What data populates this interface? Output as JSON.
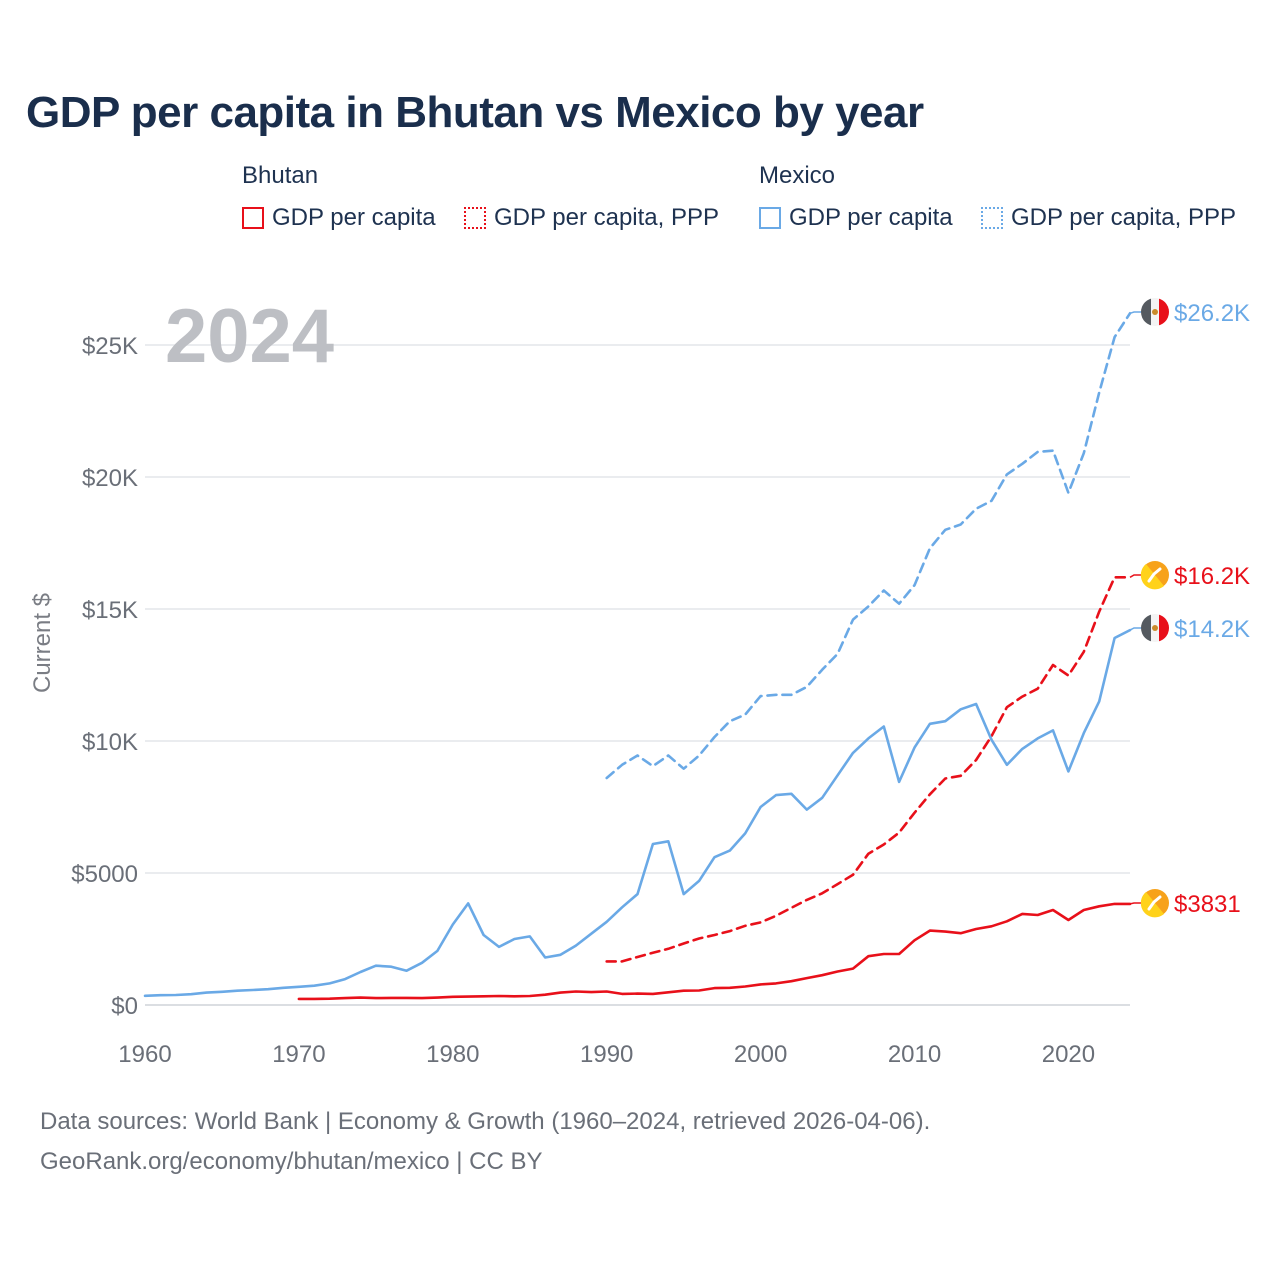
{
  "title": "GDP per capita in Bhutan vs Mexico by year",
  "legend": {
    "groups": [
      {
        "name": "Bhutan",
        "items": [
          {
            "label": "GDP per capita",
            "style": "solid",
            "color": "#e8101a"
          },
          {
            "label": "GDP per capita, PPP",
            "style": "dotted",
            "color": "#e8101a"
          }
        ]
      },
      {
        "name": "Mexico",
        "items": [
          {
            "label": "GDP per capita",
            "style": "solid",
            "color": "#6aa9e6"
          },
          {
            "label": "GDP per capita, PPP",
            "style": "dotted",
            "color": "#6aa9e6"
          }
        ]
      }
    ]
  },
  "year_watermark": "2024",
  "footer": {
    "line1": "Data sources: World Bank | Economy & Growth (1960–2024, retrieved 2026-04-06).",
    "line2": "GeoRank.org/economy/bhutan/mexico | CC BY"
  },
  "chart_data": {
    "type": "line",
    "title": "GDP per capita in Bhutan vs Mexico by year",
    "ylabel": "Current $",
    "xlabel": "",
    "xlim": [
      1960,
      2024
    ],
    "ylim": [
      0,
      27000
    ],
    "x_ticks": [
      1960,
      1970,
      1980,
      1990,
      2000,
      2010,
      2020
    ],
    "x_tick_labels": [
      "1960",
      "1970",
      "1980",
      "1990",
      "2000",
      "2010",
      "2020"
    ],
    "y_ticks": [
      0,
      5000,
      10000,
      15000,
      20000,
      25000
    ],
    "y_tick_labels": [
      "$0",
      "$5000",
      "$10K",
      "$15K",
      "$20K",
      "$25K"
    ],
    "grid": "horizontal",
    "series": [
      {
        "name": "Mexico GDP per capita, PPP",
        "country": "Mexico",
        "color": "#6aa9e6",
        "dash": "dashed",
        "end_label": "$26.2K",
        "points": [
          [
            1990,
            8600
          ],
          [
            1991,
            9100
          ],
          [
            1992,
            9450
          ],
          [
            1993,
            9050
          ],
          [
            1994,
            9450
          ],
          [
            1995,
            8950
          ],
          [
            1996,
            9450
          ],
          [
            1997,
            10150
          ],
          [
            1998,
            10750
          ],
          [
            1999,
            11000
          ],
          [
            2000,
            11700
          ],
          [
            2001,
            11750
          ],
          [
            2002,
            11750
          ],
          [
            2003,
            12050
          ],
          [
            2004,
            12700
          ],
          [
            2005,
            13300
          ],
          [
            2006,
            14600
          ],
          [
            2007,
            15100
          ],
          [
            2008,
            15700
          ],
          [
            2009,
            15200
          ],
          [
            2010,
            15900
          ],
          [
            2011,
            17300
          ],
          [
            2012,
            18000
          ],
          [
            2013,
            18200
          ],
          [
            2014,
            18800
          ],
          [
            2015,
            19100
          ],
          [
            2016,
            20100
          ],
          [
            2017,
            20500
          ],
          [
            2018,
            20950
          ],
          [
            2019,
            21000
          ],
          [
            2020,
            19400
          ],
          [
            2021,
            20900
          ],
          [
            2022,
            23200
          ],
          [
            2023,
            25300
          ],
          [
            2024,
            26200
          ]
        ]
      },
      {
        "name": "Bhutan GDP per capita, PPP",
        "country": "Bhutan",
        "color": "#e8101a",
        "dash": "dashed",
        "end_label": "$16.2K",
        "points": [
          [
            1990,
            1650
          ],
          [
            1991,
            1650
          ],
          [
            1992,
            1820
          ],
          [
            1993,
            1980
          ],
          [
            1994,
            2130
          ],
          [
            1995,
            2330
          ],
          [
            1996,
            2520
          ],
          [
            1997,
            2650
          ],
          [
            1998,
            2800
          ],
          [
            1999,
            3000
          ],
          [
            2000,
            3130
          ],
          [
            2001,
            3380
          ],
          [
            2002,
            3680
          ],
          [
            2003,
            3980
          ],
          [
            2004,
            4230
          ],
          [
            2005,
            4580
          ],
          [
            2006,
            4930
          ],
          [
            2007,
            5730
          ],
          [
            2008,
            6080
          ],
          [
            2009,
            6530
          ],
          [
            2010,
            7280
          ],
          [
            2011,
            7980
          ],
          [
            2012,
            8580
          ],
          [
            2013,
            8680
          ],
          [
            2014,
            9280
          ],
          [
            2015,
            10180
          ],
          [
            2016,
            11280
          ],
          [
            2017,
            11680
          ],
          [
            2018,
            11980
          ],
          [
            2019,
            12880
          ],
          [
            2020,
            12480
          ],
          [
            2021,
            13380
          ],
          [
            2022,
            14900
          ],
          [
            2023,
            16200
          ],
          [
            2024,
            16200
          ]
        ]
      },
      {
        "name": "Mexico GDP per capita",
        "country": "Mexico",
        "color": "#6aa9e6",
        "dash": "solid",
        "end_label": "$14.2K",
        "points": [
          [
            1960,
            350
          ],
          [
            1961,
            370
          ],
          [
            1962,
            380
          ],
          [
            1963,
            410
          ],
          [
            1964,
            470
          ],
          [
            1965,
            500
          ],
          [
            1966,
            540
          ],
          [
            1967,
            570
          ],
          [
            1968,
            600
          ],
          [
            1969,
            650
          ],
          [
            1970,
            690
          ],
          [
            1971,
            730
          ],
          [
            1972,
            820
          ],
          [
            1973,
            980
          ],
          [
            1974,
            1250
          ],
          [
            1975,
            1490
          ],
          [
            1976,
            1450
          ],
          [
            1977,
            1300
          ],
          [
            1978,
            1600
          ],
          [
            1979,
            2050
          ],
          [
            1980,
            3050
          ],
          [
            1981,
            3850
          ],
          [
            1982,
            2650
          ],
          [
            1983,
            2200
          ],
          [
            1984,
            2500
          ],
          [
            1985,
            2600
          ],
          [
            1986,
            1800
          ],
          [
            1987,
            1900
          ],
          [
            1988,
            2250
          ],
          [
            1989,
            2700
          ],
          [
            1990,
            3150
          ],
          [
            1991,
            3700
          ],
          [
            1992,
            4200
          ],
          [
            1993,
            6100
          ],
          [
            1994,
            6200
          ],
          [
            1995,
            4200
          ],
          [
            1996,
            4700
          ],
          [
            1997,
            5600
          ],
          [
            1998,
            5850
          ],
          [
            1999,
            6500
          ],
          [
            2000,
            7500
          ],
          [
            2001,
            7950
          ],
          [
            2002,
            8000
          ],
          [
            2003,
            7400
          ],
          [
            2004,
            7850
          ],
          [
            2005,
            8700
          ],
          [
            2006,
            9550
          ],
          [
            2007,
            10100
          ],
          [
            2008,
            10550
          ],
          [
            2009,
            8450
          ],
          [
            2010,
            9750
          ],
          [
            2011,
            10650
          ],
          [
            2012,
            10750
          ],
          [
            2013,
            11200
          ],
          [
            2014,
            11400
          ],
          [
            2015,
            10050
          ],
          [
            2016,
            9100
          ],
          [
            2017,
            9700
          ],
          [
            2018,
            10100
          ],
          [
            2019,
            10400
          ],
          [
            2020,
            8850
          ],
          [
            2021,
            10300
          ],
          [
            2022,
            11500
          ],
          [
            2023,
            13900
          ],
          [
            2024,
            14200
          ]
        ]
      },
      {
        "name": "Bhutan GDP per capita",
        "country": "Bhutan",
        "color": "#e8101a",
        "dash": "solid",
        "end_label": "$3831",
        "points": [
          [
            1970,
            230
          ],
          [
            1971,
            230
          ],
          [
            1972,
            240
          ],
          [
            1973,
            260
          ],
          [
            1974,
            280
          ],
          [
            1975,
            260
          ],
          [
            1976,
            270
          ],
          [
            1977,
            270
          ],
          [
            1978,
            260
          ],
          [
            1979,
            280
          ],
          [
            1980,
            310
          ],
          [
            1981,
            320
          ],
          [
            1982,
            330
          ],
          [
            1983,
            340
          ],
          [
            1984,
            330
          ],
          [
            1985,
            340
          ],
          [
            1986,
            390
          ],
          [
            1987,
            470
          ],
          [
            1988,
            510
          ],
          [
            1989,
            490
          ],
          [
            1990,
            510
          ],
          [
            1991,
            420
          ],
          [
            1992,
            430
          ],
          [
            1993,
            420
          ],
          [
            1994,
            480
          ],
          [
            1995,
            540
          ],
          [
            1996,
            550
          ],
          [
            1997,
            640
          ],
          [
            1998,
            650
          ],
          [
            1999,
            700
          ],
          [
            2000,
            780
          ],
          [
            2001,
            820
          ],
          [
            2002,
            900
          ],
          [
            2003,
            1020
          ],
          [
            2004,
            1130
          ],
          [
            2005,
            1270
          ],
          [
            2006,
            1380
          ],
          [
            2007,
            1850
          ],
          [
            2008,
            1930
          ],
          [
            2009,
            1930
          ],
          [
            2010,
            2450
          ],
          [
            2011,
            2820
          ],
          [
            2012,
            2780
          ],
          [
            2013,
            2720
          ],
          [
            2014,
            2880
          ],
          [
            2015,
            2980
          ],
          [
            2016,
            3170
          ],
          [
            2017,
            3450
          ],
          [
            2018,
            3410
          ],
          [
            2019,
            3600
          ],
          [
            2020,
            3220
          ],
          [
            2021,
            3600
          ],
          [
            2022,
            3740
          ],
          [
            2023,
            3831
          ],
          [
            2024,
            3831
          ]
        ]
      }
    ]
  }
}
